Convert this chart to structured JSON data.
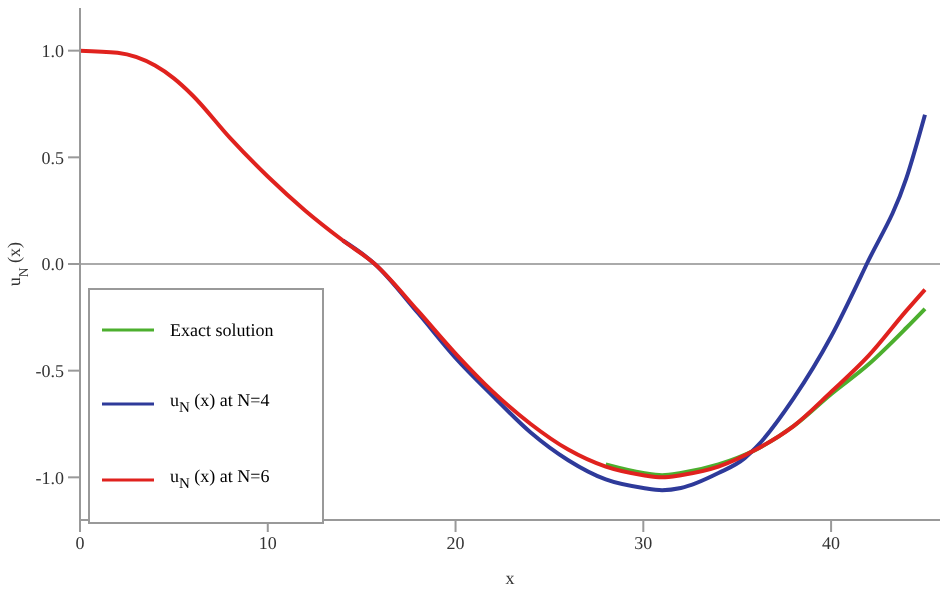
{
  "chart_data": {
    "type": "line",
    "xlabel": "x",
    "ylabel": "u$_{N}$ (x)",
    "xlim": [
      0,
      45.8
    ],
    "ylim": [
      -1.2,
      1.2
    ],
    "xticks": [
      0,
      10,
      20,
      30,
      40
    ],
    "yticks": [
      {
        "value": -1,
        "label": "-1.0"
      },
      {
        "value": -0.5,
        "label": "-0.5"
      },
      {
        "value": 0,
        "label": "0.0"
      },
      {
        "value": 0.5,
        "label": "0.5"
      },
      {
        "value": 1,
        "label": "1.0"
      }
    ],
    "ref_lines": [
      {
        "axis": "y",
        "value": 0,
        "color": "#aaaaaa"
      }
    ],
    "legend": "bottom left",
    "grid": false,
    "marker": "none",
    "line_style": "solid",
    "series": [
      {
        "name": "Exact solution",
        "color": "#4caf2e",
        "x": [
          28,
          30,
          31,
          32,
          34,
          36,
          38,
          40,
          42,
          44,
          45
        ],
        "values": [
          -0.94,
          -0.98,
          -0.99,
          -0.98,
          -0.94,
          -0.87,
          -0.76,
          -0.61,
          -0.47,
          -0.3,
          -0.21
        ]
      },
      {
        "name": "u$_{N}$ (x) at N=4",
        "color": "#2e3a9a",
        "x": [
          14,
          15.7,
          18,
          20,
          22,
          24,
          26,
          28,
          30,
          31,
          32,
          34,
          35.4,
          36,
          38,
          40,
          41.9,
          44,
          45
        ],
        "values": [
          0.11,
          0,
          -0.23,
          -0.44,
          -0.62,
          -0.79,
          -0.92,
          -1.01,
          -1.05,
          -1.06,
          -1.05,
          -0.98,
          -0.91,
          -0.86,
          -0.63,
          -0.34,
          0,
          0.4,
          0.7
        ]
      },
      {
        "name": "u$_{N}$ (x) at N=6",
        "color": "#e0221e",
        "x": [
          0,
          2,
          4,
          5,
          6,
          8,
          10,
          12,
          14,
          15.7,
          18,
          20,
          22,
          24,
          26,
          28,
          30,
          31,
          32,
          34,
          36,
          38,
          40,
          42,
          44,
          45
        ],
        "values": [
          1,
          0.99,
          0.93,
          0.87,
          0.79,
          0.59,
          0.41,
          0.25,
          0.11,
          0,
          -0.22,
          -0.42,
          -0.6,
          -0.75,
          -0.87,
          -0.95,
          -0.99,
          -1,
          -0.99,
          -0.95,
          -0.87,
          -0.76,
          -0.6,
          -0.43,
          -0.22,
          -0.12
        ]
      }
    ]
  }
}
